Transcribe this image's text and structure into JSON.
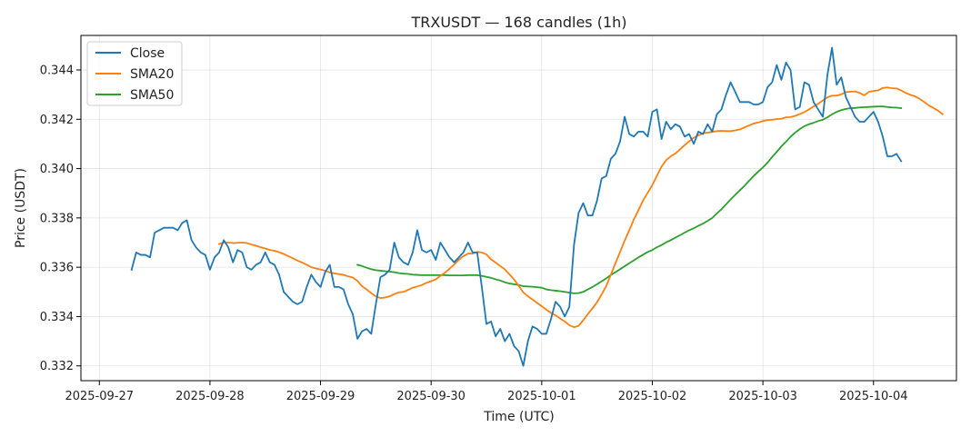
{
  "chart_data": {
    "type": "line",
    "title": "TRXUSDT — 168 candles (1h)",
    "xlabel": "Time (UTC)",
    "ylabel": "Price (USDT)",
    "x_start": "2025-09-27 07:00",
    "x_interval": "1h",
    "xlim": [
      "2025-09-26 20:00",
      "2025-10-04 18:00"
    ],
    "ylim": [
      0.3314,
      0.3454
    ],
    "x_ticks": [
      "2025-09-27",
      "2025-09-28",
      "2025-09-29",
      "2025-09-30",
      "2025-10-01",
      "2025-10-02",
      "2025-10-03",
      "2025-10-04"
    ],
    "y_ticks": [
      "0.332",
      "0.334",
      "0.336",
      "0.338",
      "0.340",
      "0.342",
      "0.344"
    ],
    "grid": true,
    "legend": "top-left",
    "series": [
      {
        "name": "Close",
        "color": "#1f77b4",
        "values": [
          0.3359,
          0.3366,
          0.3365,
          0.3365,
          0.3364,
          0.3374,
          0.3375,
          0.3376,
          0.3376,
          0.3376,
          0.3375,
          0.3378,
          0.3379,
          0.3371,
          0.3368,
          0.3366,
          0.3365,
          0.3359,
          0.3364,
          0.3366,
          0.3371,
          0.3368,
          0.3362,
          0.3367,
          0.3366,
          0.336,
          0.3359,
          0.3361,
          0.3362,
          0.3366,
          0.3362,
          0.3361,
          0.3357,
          0.335,
          0.3348,
          0.3346,
          0.3345,
          0.3346,
          0.3352,
          0.3357,
          0.3354,
          0.3352,
          0.3358,
          0.3361,
          0.3352,
          0.3352,
          0.3351,
          0.3345,
          0.3341,
          0.3331,
          0.3334,
          0.3335,
          0.3333,
          0.3345,
          0.3356,
          0.3357,
          0.3359,
          0.337,
          0.3364,
          0.3362,
          0.3361,
          0.3366,
          0.3375,
          0.3367,
          0.3366,
          0.3367,
          0.3363,
          0.337,
          0.3367,
          0.3364,
          0.3362,
          0.3364,
          0.3366,
          0.337,
          0.3366,
          0.3366,
          0.3352,
          0.3337,
          0.3338,
          0.3332,
          0.3335,
          0.333,
          0.3333,
          0.3328,
          0.3326,
          0.332,
          0.333,
          0.3336,
          0.3335,
          0.3333,
          0.3333,
          0.3339,
          0.3346,
          0.3344,
          0.334,
          0.3344,
          0.3369,
          0.3382,
          0.3386,
          0.3381,
          0.3381,
          0.3387,
          0.3396,
          0.3397,
          0.3404,
          0.3406,
          0.3411,
          0.3421,
          0.3414,
          0.3413,
          0.3415,
          0.3415,
          0.3413,
          0.3423,
          0.3424,
          0.3412,
          0.3419,
          0.3416,
          0.3418,
          0.3417,
          0.3413,
          0.3414,
          0.341,
          0.3415,
          0.3414,
          0.3418,
          0.3415,
          0.3422,
          0.3424,
          0.343,
          0.3435,
          0.3431,
          0.3427,
          0.3427,
          0.3427,
          0.3426,
          0.3426,
          0.3427,
          0.3433,
          0.3435,
          0.3442,
          0.3436,
          0.3443,
          0.344,
          0.3424,
          0.3425,
          0.3435,
          0.3434,
          0.3427,
          0.3424,
          0.3421,
          0.3438,
          0.3449,
          0.3434,
          0.3437,
          0.3429,
          0.3425,
          0.3421,
          0.3419,
          0.3419,
          0.3421,
          0.3423,
          0.3419,
          0.3413,
          0.3405,
          0.3405,
          0.3406,
          0.3403
        ]
      },
      {
        "name": "SMA20",
        "color": "#ff7f0e",
        "values": [
          null,
          null,
          null,
          null,
          null,
          null,
          null,
          null,
          null,
          null,
          null,
          null,
          null,
          null,
          null,
          null,
          null,
          null,
          null,
          0.33694,
          0.337,
          0.337,
          0.33698,
          0.33699,
          0.337,
          0.33698,
          0.33692,
          0.33687,
          0.33681,
          0.33676,
          0.3367,
          0.33667,
          0.33661,
          0.33654,
          0.33645,
          0.33636,
          0.33627,
          0.33619,
          0.3361,
          0.336,
          0.33595,
          0.33591,
          0.33586,
          0.33579,
          0.33575,
          0.33572,
          0.33569,
          0.33563,
          0.33558,
          0.33545,
          0.33523,
          0.3351,
          0.33495,
          0.33482,
          0.33475,
          0.33477,
          0.33482,
          0.33491,
          0.33498,
          0.335,
          0.33508,
          0.33517,
          0.33522,
          0.33528,
          0.33537,
          0.33543,
          0.33551,
          0.33565,
          0.33578,
          0.33594,
          0.33611,
          0.3363,
          0.33645,
          0.33655,
          0.33655,
          0.33662,
          0.3366,
          0.33652,
          0.33632,
          0.33619,
          0.33605,
          0.33591,
          0.33571,
          0.3355,
          0.33525,
          0.33498,
          0.33482,
          0.33469,
          0.33455,
          0.33442,
          0.33428,
          0.33415,
          0.33405,
          0.33392,
          0.3338,
          0.33365,
          0.33357,
          0.33362,
          0.33385,
          0.3341,
          0.33433,
          0.33458,
          0.3349,
          0.33524,
          0.3357,
          0.33616,
          0.33662,
          0.33708,
          0.3375,
          0.33794,
          0.33832,
          0.33871,
          0.33902,
          0.33933,
          0.33971,
          0.34008,
          0.34034,
          0.3405,
          0.34061,
          0.34078,
          0.34095,
          0.34111,
          0.34125,
          0.34135,
          0.34143,
          0.34146,
          0.34149,
          0.34152,
          0.34153,
          0.34152,
          0.34152,
          0.34155,
          0.34159,
          0.34167,
          0.34175,
          0.34183,
          0.34187,
          0.34193,
          0.34197,
          0.34198,
          0.34201,
          0.34202,
          0.34208,
          0.34209,
          0.34214,
          0.34221,
          0.34229,
          0.3424,
          0.34252,
          0.34263,
          0.34276,
          0.34289,
          0.34296,
          0.34296,
          0.34301,
          0.3431,
          0.34312,
          0.34313,
          0.34307,
          0.34297,
          0.34311,
          0.34315,
          0.34317,
          0.34327,
          0.34329,
          0.34326,
          0.34325,
          0.34317,
          0.34307,
          0.34299,
          0.34293,
          0.34283,
          0.3427,
          0.34256,
          0.34246,
          0.34235,
          0.34221
        ]
      },
      {
        "name": "SMA50",
        "color": "#2ca02c",
        "values": [
          null,
          null,
          null,
          null,
          null,
          null,
          null,
          null,
          null,
          null,
          null,
          null,
          null,
          null,
          null,
          null,
          null,
          null,
          null,
          null,
          null,
          null,
          null,
          null,
          null,
          null,
          null,
          null,
          null,
          null,
          null,
          null,
          null,
          null,
          null,
          null,
          null,
          null,
          null,
          null,
          null,
          null,
          null,
          null,
          null,
          null,
          null,
          null,
          null,
          0.3361,
          0.33605,
          0.33598,
          0.33592,
          0.33588,
          0.33586,
          0.33584,
          0.33582,
          0.3358,
          0.33576,
          0.33574,
          0.33573,
          0.3357,
          0.33569,
          0.33568,
          0.33568,
          0.33568,
          0.33568,
          0.33568,
          0.33568,
          0.33567,
          0.33567,
          0.33567,
          0.33567,
          0.33568,
          0.33568,
          0.33568,
          0.33565,
          0.33561,
          0.33557,
          0.33551,
          0.33546,
          0.33539,
          0.33534,
          0.33531,
          0.33528,
          0.33523,
          0.33522,
          0.33521,
          0.33519,
          0.33517,
          0.3351,
          0.33507,
          0.33505,
          0.33503,
          0.335,
          0.33497,
          0.33494,
          0.33495,
          0.335,
          0.3351,
          0.3352,
          0.33531,
          0.33543,
          0.33555,
          0.33569,
          0.3358,
          0.33592,
          0.33604,
          0.33616,
          0.33628,
          0.3364,
          0.33651,
          0.33662,
          0.3367,
          0.33681,
          0.3369,
          0.33701,
          0.3371,
          0.3372,
          0.3373,
          0.3374,
          0.3375,
          0.33758,
          0.33768,
          0.33777,
          0.33788,
          0.338,
          0.33818,
          0.33835,
          0.33855,
          0.33875,
          0.33894,
          0.33912,
          0.3393,
          0.33951,
          0.3397,
          0.33988,
          0.34005,
          0.34024,
          0.34047,
          0.34068,
          0.3409,
          0.34109,
          0.34129,
          0.34146,
          0.3416,
          0.34172,
          0.3418,
          0.34186,
          0.34193,
          0.34198,
          0.34208,
          0.3422,
          0.3423,
          0.34237,
          0.34242,
          0.34245,
          0.34246,
          0.34248,
          0.34249,
          0.3425,
          0.34251,
          0.34252,
          0.34252,
          0.3425,
          0.34248,
          0.34247,
          0.34245
        ]
      }
    ]
  }
}
